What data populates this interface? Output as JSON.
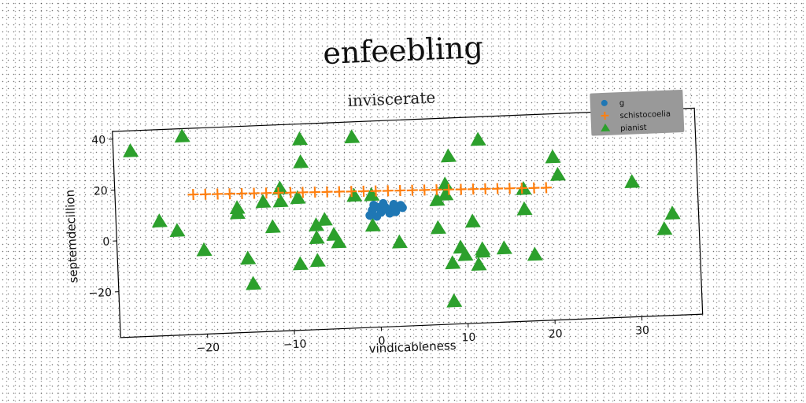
{
  "figure": {
    "suptitle": "enfeebling"
  },
  "colors": {
    "g": "#1f77b4",
    "schistocoelia": "#ff7f0e",
    "pianist": "#2ca02c",
    "legend_bg": "#999999"
  },
  "chart_data": {
    "type": "scatter",
    "title": "inviscerate",
    "xlabel": "vindicableness",
    "ylabel": "septemdecillion",
    "xlim": [
      -30,
      37
    ],
    "ylim": [
      -38,
      43
    ],
    "xticks": [
      -20,
      -10,
      0,
      10,
      20,
      30
    ],
    "xtick_labels": [
      "−20",
      "−10",
      "0",
      "10",
      "20",
      "30"
    ],
    "yticks": [
      -20,
      0,
      20,
      40
    ],
    "ytick_labels": [
      "−20",
      "0",
      "20",
      "40"
    ],
    "grid": false,
    "legend": {
      "placement": "top-right"
    },
    "series": [
      {
        "name": "g",
        "marker": "circle",
        "x": [
          -0.5,
          0.2,
          1.0,
          1.8,
          2.5,
          3.0,
          -0.8,
          0.5,
          1.5,
          2.2,
          -0.3,
          0.8,
          2.8,
          1.2,
          0.0,
          2.0
        ],
        "y": [
          8,
          9,
          9,
          8.5,
          9,
          8.5,
          6,
          7,
          6.5,
          7,
          10,
          10.5,
          9.5,
          8,
          5.5,
          10
        ]
      },
      {
        "name": "schistocoelia",
        "marker": "plus",
        "x": [
          -21.0,
          -19.6,
          -18.2,
          -16.8,
          -15.4,
          -14.0,
          -12.6,
          -11.2,
          -9.8,
          -8.4,
          -7.0,
          -5.6,
          -4.2,
          -2.8,
          -1.4,
          0.0,
          1.4,
          2.8,
          4.2,
          5.6,
          7.0,
          8.4,
          9.8,
          11.2,
          12.6,
          14.0,
          15.4,
          16.8,
          18.2,
          19.6
        ],
        "y": [
          17.0,
          16.9,
          16.8,
          16.7,
          16.6,
          16.5,
          16.4,
          16.3,
          16.2,
          16.1,
          16.0,
          15.9,
          15.8,
          15.7,
          15.6,
          15.5,
          15.4,
          15.3,
          15.2,
          15.1,
          15.0,
          14.9,
          14.8,
          14.7,
          14.6,
          14.5,
          14.4,
          14.3,
          14.2,
          14.1
        ]
      },
      {
        "name": "pianist",
        "marker": "triangle",
        "x": [
          -28,
          -22,
          -25,
          -23,
          -20,
          -16,
          -16,
          -15,
          -13,
          -12,
          -11,
          -11,
          -9,
          -8.5,
          -8.5,
          -9,
          -7,
          -7,
          -7,
          -6,
          -5,
          -4.5,
          -2.5,
          -2.5,
          -0.5,
          -0.5,
          2.5,
          7,
          7,
          8,
          8.5,
          8.5,
          8.5,
          9.5,
          10,
          11,
          11.5,
          12,
          12,
          14.5,
          17,
          17,
          18,
          20.5,
          21,
          29.5,
          33,
          34,
          8,
          -14.5,
          12
        ],
        "y": [
          35,
          40,
          7,
          3,
          -5,
          9,
          11,
          -9,
          13,
          3,
          13,
          18,
          14,
          28,
          37,
          -12,
          3,
          -2,
          -11,
          5,
          -1,
          -4,
          37,
          14,
          2,
          14,
          -5,
          11,
          0,
          17,
          28,
          -14,
          -29,
          -8,
          -11,
          2,
          -15,
          34,
          -9,
          -9,
          14,
          6,
          -12,
          26,
          19,
          15,
          -4,
          2,
          13,
          -19,
          -10
        ]
      }
    ]
  }
}
